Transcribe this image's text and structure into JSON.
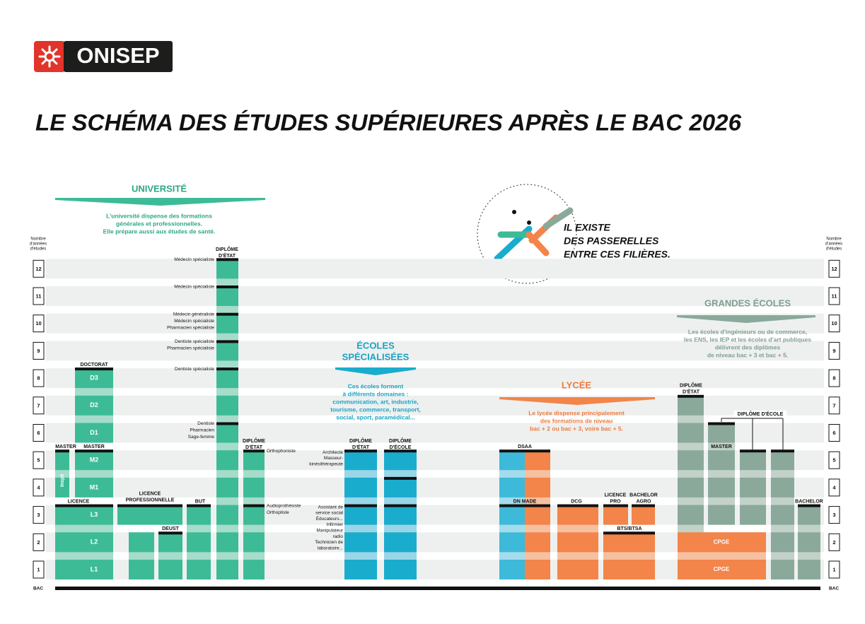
{
  "header": {
    "logo": "ONISEP",
    "title": "LE SCHÉMA DES ÉTUDES SUPÉRIEURES APRÈS LE BAC 2026"
  },
  "axis": {
    "caption": [
      "Nombre",
      "d'années",
      "d'études"
    ],
    "years": [
      "1",
      "2",
      "3",
      "4",
      "5",
      "6",
      "7",
      "8",
      "9",
      "10",
      "11",
      "12"
    ],
    "base": "BAC"
  },
  "passerelles": [
    "IL EXISTE",
    "DES PASSERELLES",
    "ENTRE CES FILIÈRES."
  ],
  "universite": {
    "title": "UNIVERSITÉ",
    "text": [
      "L'université dispense des formations",
      "générales et professionnelles.",
      "Elle prépare aussi aux études de santé."
    ],
    "licence": {
      "label": "LICENCE",
      "years": [
        "L1",
        "L2",
        "L3"
      ]
    },
    "licence_pro": [
      "LICENCE",
      "PROFESSIONNELLE"
    ],
    "deust": "DEUST",
    "but": "BUT",
    "master": {
      "label": "MASTER",
      "years": [
        "M1",
        "M2"
      ]
    },
    "master_inspe": {
      "label": "MASTER",
      "note": "Inspé"
    },
    "doctorat": {
      "label": "DOCTORAT",
      "years": [
        "D1",
        "D2",
        "D3"
      ]
    },
    "sante": {
      "label": [
        "DIPLÔME",
        "D'ÉTAT"
      ],
      "exits": [
        [
          "Médecin spécialiste"
        ],
        [
          "Médecin spécialiste"
        ],
        [
          "Médecin généraliste",
          "Médecin spécialiste",
          "Pharmacien spécialiste"
        ],
        [
          "Dentiste spécialiste",
          "Pharmacien spécialiste"
        ],
        [
          "Dentiste spécialiste"
        ],
        [
          "Dentiste",
          "Pharmacien",
          "Sage-femme"
        ]
      ]
    },
    "paramedical": {
      "label": [
        "DIPLÔME",
        "D'ÉTAT"
      ],
      "exits": [
        [
          "Orthophoniste"
        ],
        [
          "Audioprothésiste",
          "Orthoptiste"
        ]
      ]
    }
  },
  "ecoles": {
    "title": [
      "ÉCOLES",
      "SPÉCIALISÉES"
    ],
    "text": [
      "Ces écoles forment",
      "à différents domaines :",
      "communication, art, industrie,",
      "tourisme, commerce, transport,",
      "social, sport, paramédical..."
    ],
    "etat": [
      "DIPLÔME",
      "D'ÉTAT"
    ],
    "ecole": [
      "DIPLÔME",
      "D'ÉCOLE"
    ],
    "exits": [
      [
        "Architecte",
        "Masseur-",
        "kinésithérapeute"
      ],
      [
        "Assistant de",
        "service social",
        "Éducateurs...",
        "Infirmier",
        "Manipulateur",
        "radio",
        "Technicien de",
        "laboratoire..."
      ]
    ]
  },
  "lycee": {
    "title": "LYCÉE",
    "text": [
      "Le lycée dispense principalement",
      "des formations de niveau",
      "bac + 2 ou bac + 3, voire bac + 5."
    ],
    "dsaa": "DSAA",
    "dnmade": "DN MADE",
    "dcg": "DCG",
    "licence_pro": [
      "LICENCE",
      "PRO"
    ],
    "bachelor_agro": [
      "BACHELOR",
      "AGRO"
    ],
    "bts": "BTS/BTSA"
  },
  "grandes_ecoles": {
    "title": "GRANDES ÉCOLES",
    "text": [
      "Les écoles d'ingénieurs ou de commerce,",
      "les ENS, les IEP et les écoles d'art publiques",
      "délivrent des diplômes",
      "de niveau bac + 3 et bac + 5."
    ],
    "etat": [
      "DIPLÔME",
      "D'ÉTAT"
    ],
    "ecole": "DIPLÔME D'ÉCOLE",
    "master": "MASTER",
    "bachelor": "BACHELOR",
    "cpge": [
      "CPGE",
      "CPGE"
    ]
  }
}
